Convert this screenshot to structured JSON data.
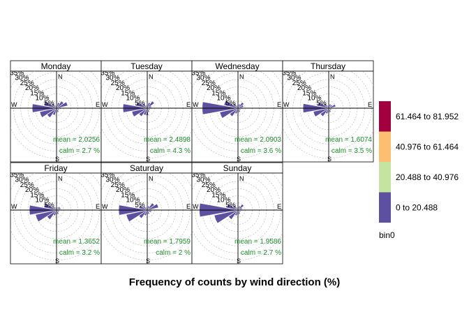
{
  "chart_data": {
    "type": "polar-bar",
    "title": "Frequency of counts by wind direction (%)",
    "directions": [
      "N",
      "NNE",
      "NE",
      "ENE",
      "E",
      "ESE",
      "SE",
      "SSE",
      "S",
      "SSW",
      "SW",
      "WSW",
      "W",
      "WNW",
      "NW",
      "NNW"
    ],
    "compass_labels": [
      "N",
      "E",
      "S",
      "W"
    ],
    "radial_ticks": [
      5,
      10,
      15,
      20,
      25,
      30,
      35
    ],
    "radial_tick_labels": [
      "5%",
      "10%",
      "15%",
      "20%",
      "25%",
      "30%",
      "35%"
    ],
    "rmax": 35,
    "bin_label": "bin0",
    "legend": [
      {
        "label": "0 to 20.488",
        "color": "#5e50a1"
      },
      {
        "label": "20.488 to 40.976",
        "color": "#c4e4a0"
      },
      {
        "label": "40.976 to 61.464",
        "color": "#fcbe70"
      },
      {
        "label": "61.464 to 81.952",
        "color": "#a3003f"
      }
    ],
    "panels": [
      {
        "name": "Monday",
        "mean_text": "mean = 2.0256",
        "calm_text": "calm = 2.7 %",
        "values": [
          2,
          4,
          6,
          8,
          3,
          2,
          2,
          3,
          3,
          5,
          8,
          12,
          17,
          9,
          4,
          2
        ]
      },
      {
        "name": "Tuesday",
        "mean_text": "mean = 2.4898",
        "calm_text": "calm = 4.3 %",
        "values": [
          2,
          4,
          6,
          3,
          3,
          2,
          2,
          3,
          5,
          5,
          7,
          11,
          17,
          8,
          4,
          2
        ]
      },
      {
        "name": "Wednesday",
        "mean_text": "mean = 2.0903",
        "calm_text": "calm = 3.6 %",
        "values": [
          2,
          3,
          5,
          4,
          3,
          2,
          2,
          3,
          3,
          4,
          7,
          13,
          25,
          10,
          4,
          2
        ]
      },
      {
        "name": "Thursday",
        "mean_text": "mean = 1.6074",
        "calm_text": "calm = 3.5 %",
        "values": [
          2,
          3,
          3,
          5,
          2,
          2,
          2,
          3,
          3,
          4,
          7,
          11,
          18,
          8,
          4,
          2
        ]
      },
      {
        "name": "Friday",
        "mean_text": "mean = 1.3652",
        "calm_text": "calm = 3.2 %",
        "values": [
          2,
          2,
          3,
          3,
          2,
          2,
          2,
          3,
          3,
          4,
          8,
          15,
          19,
          9,
          3,
          2
        ]
      },
      {
        "name": "Saturday",
        "mean_text": "mean = 1.7959",
        "calm_text": "calm = 2 %",
        "values": [
          2,
          3,
          6,
          8,
          3,
          3,
          2,
          3,
          3,
          4,
          7,
          15,
          20,
          6,
          3,
          2
        ]
      },
      {
        "name": "Sunday",
        "mean_text": "mean = 1.9586",
        "calm_text": "calm = 2.7 %",
        "values": [
          2,
          3,
          5,
          3,
          3,
          2,
          2,
          3,
          3,
          4,
          8,
          17,
          27,
          8,
          4,
          2
        ]
      }
    ]
  }
}
